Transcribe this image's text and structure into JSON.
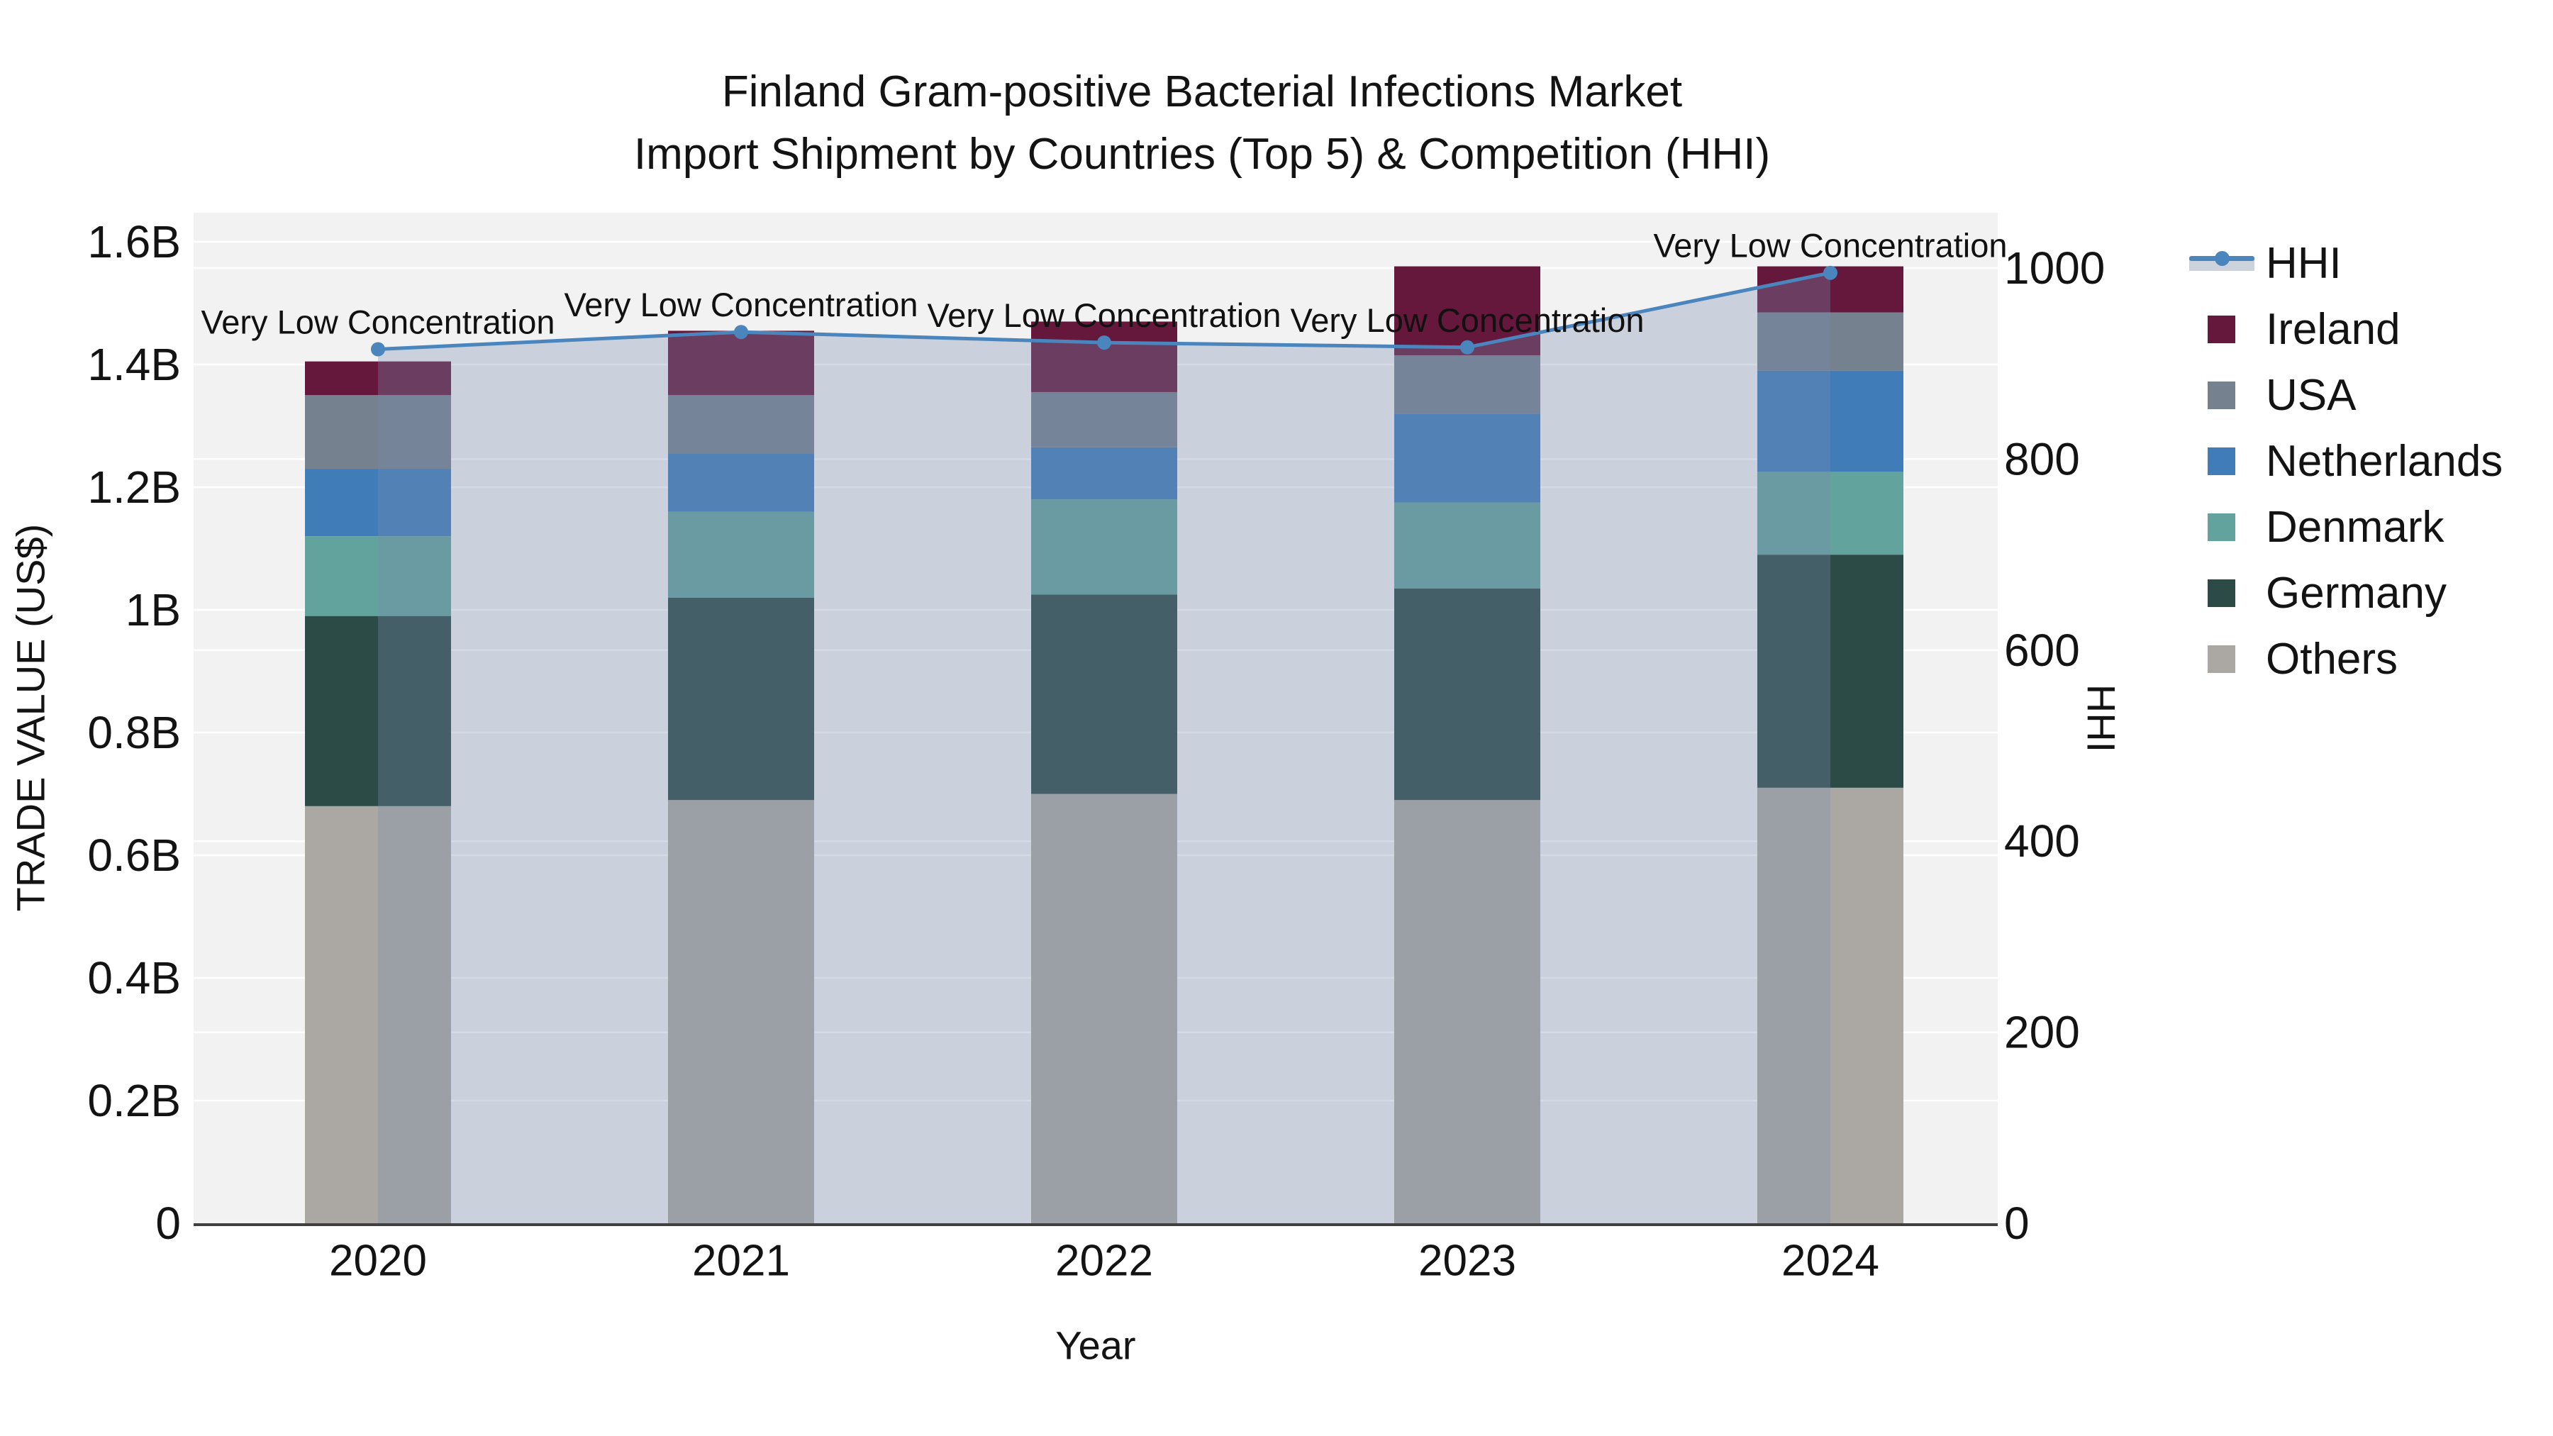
{
  "title": {
    "line1": "Finland Gram-positive Bacterial Infections Market",
    "line2": "Import Shipment by Countries (Top 5) & Competition (HHI)"
  },
  "axis_titles": {
    "left": "TRADE VALUE (US$)",
    "right": "HHI",
    "bottom": "Year"
  },
  "legend": {
    "items": [
      {
        "label": "HHI",
        "type": "line",
        "color": "#4A85BD"
      },
      {
        "label": "Ireland",
        "type": "swatch",
        "color": "#65183B"
      },
      {
        "label": "USA",
        "type": "swatch",
        "color": "#75818F"
      },
      {
        "label": "Netherlands",
        "type": "swatch",
        "color": "#3F7CB8"
      },
      {
        "label": "Denmark",
        "type": "swatch",
        "color": "#63A39E"
      },
      {
        "label": "Germany",
        "type": "swatch",
        "color": "#2C4B46"
      },
      {
        "label": "Others",
        "type": "swatch",
        "color": "#ABA8A3"
      }
    ]
  },
  "chart_data": {
    "type": "bar+line",
    "title": "Finland Gram-positive Bacterial Infections Market — Import Shipment by Countries (Top 5) & Competition (HHI)",
    "xlabel": "Year",
    "ylabel": "TRADE VALUE (US$)",
    "ylabel_right": "HHI",
    "categories": [
      "2020",
      "2021",
      "2022",
      "2023",
      "2024"
    ],
    "stack_order": "bottom_to_top",
    "series": [
      {
        "name": "Others",
        "color": "#ABA8A3",
        "values_billions": [
          0.68,
          0.69,
          0.7,
          0.69,
          0.71
        ]
      },
      {
        "name": "Germany",
        "color": "#2C4B46",
        "values_billions": [
          0.31,
          0.33,
          0.325,
          0.345,
          0.38
        ]
      },
      {
        "name": "Denmark",
        "color": "#63A39E",
        "values_billions": [
          0.13,
          0.14,
          0.155,
          0.14,
          0.135
        ]
      },
      {
        "name": "Netherlands",
        "color": "#3F7CB8",
        "values_billions": [
          0.11,
          0.095,
          0.085,
          0.145,
          0.165
        ]
      },
      {
        "name": "USA",
        "color": "#75818F",
        "values_billions": [
          0.12,
          0.095,
          0.09,
          0.095,
          0.095
        ]
      },
      {
        "name": "Ireland",
        "color": "#65183B",
        "values_billions": [
          0.055,
          0.105,
          0.115,
          0.145,
          0.075
        ]
      }
    ],
    "totals_billions": [
      1.405,
      1.455,
      1.47,
      1.56,
      1.56
    ],
    "line_series": {
      "name": "HHI",
      "color": "#4A85BD",
      "area_fill_color": "#7A8DAD",
      "area_fill_opacity": 0.32,
      "values": [
        915,
        933,
        922,
        917,
        995
      ]
    },
    "point_annotations": [
      "Very Low Concentration",
      "Very Low Concentration",
      "Very Low Concentration",
      "Very Low Concentration",
      "Very Low Concentration"
    ],
    "y_left_axis": {
      "tick_labels": [
        "0",
        "0.2B",
        "0.4B",
        "0.6B",
        "0.8B",
        "1B",
        "1.2B",
        "1.4B",
        "1.6B"
      ],
      "tick_values": [
        0,
        0.2,
        0.4,
        0.6,
        0.8,
        1.0,
        1.2,
        1.4,
        1.6
      ],
      "range": [
        0,
        1.647
      ]
    },
    "y_right_axis": {
      "tick_labels": [
        "0",
        "200",
        "400",
        "600",
        "800",
        "1000"
      ],
      "tick_values": [
        0,
        200,
        400,
        600,
        800,
        1000
      ],
      "range": [
        0,
        1058
      ]
    },
    "grid": true,
    "legend_position": "right",
    "plot_bg_color": "#F2F2F2",
    "grid_color": "#FFFFFF",
    "axis_line_color": "#3F3F3F",
    "text_color": "#131313"
  }
}
